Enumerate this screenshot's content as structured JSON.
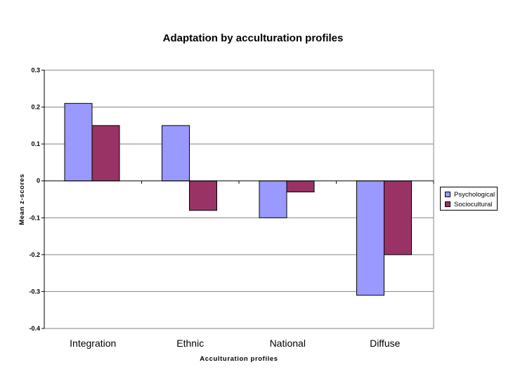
{
  "chart_data": {
    "type": "bar",
    "title": "Adaptation by acculturation profiles",
    "xlabel": "Acculturation profiles",
    "ylabel": "Mean z-scores",
    "categories": [
      "Integration",
      "Ethnic",
      "National",
      "Diffuse"
    ],
    "series": [
      {
        "name": "Psychological",
        "values": [
          0.21,
          0.15,
          -0.1,
          -0.31
        ],
        "color": "#9999ff"
      },
      {
        "name": "Sociocultural",
        "values": [
          0.15,
          -0.08,
          -0.03,
          -0.2
        ],
        "color": "#993366"
      }
    ],
    "ylim": [
      -0.4,
      0.3
    ],
    "yticks": [
      "0.3",
      "0.2",
      "0.1",
      "0",
      "-0.1",
      "-0.2",
      "-0.3",
      "-0.4"
    ],
    "ytick_values": [
      0.3,
      0.2,
      0.1,
      0,
      -0.1,
      -0.2,
      -0.3,
      -0.4
    ],
    "grid": true,
    "legend_position": "right"
  }
}
